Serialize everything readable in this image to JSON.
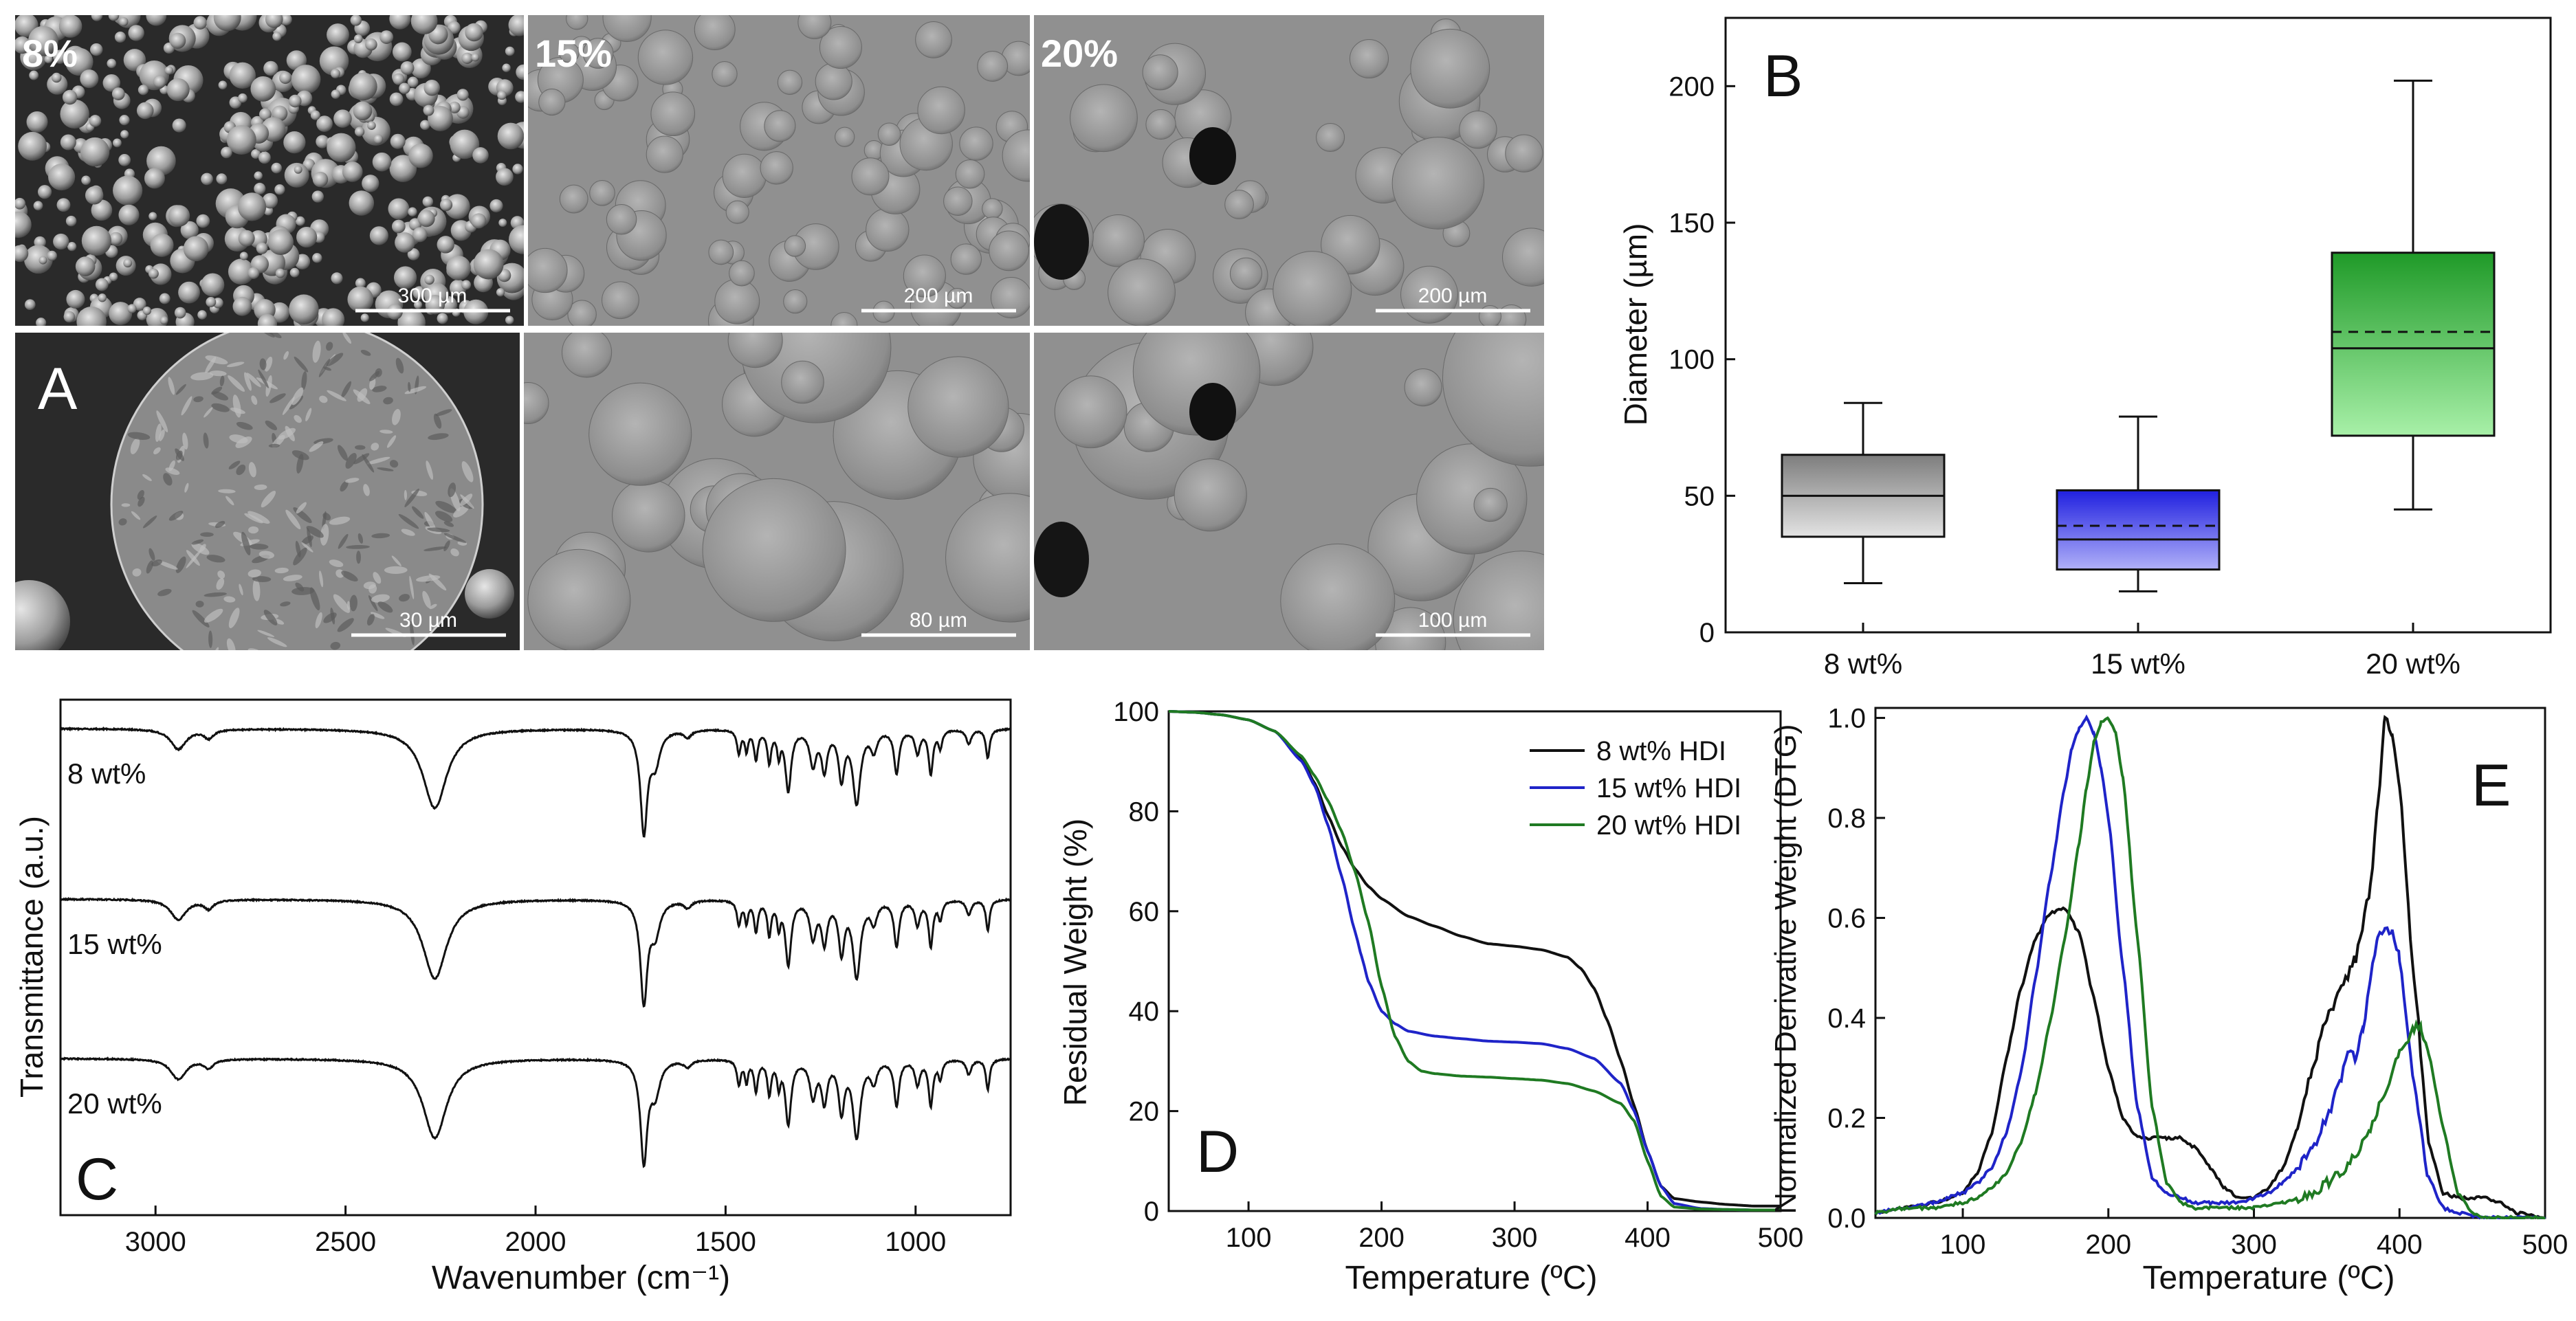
{
  "colors": {
    "black": "#111111",
    "blue": "#1f24c8",
    "green": "#1f7a22",
    "box_gray_top": "#7d7d7d",
    "box_gray_bottom": "#e3e3e3",
    "box_blue_top": "#2020e0",
    "box_blue_bottom": "#b0b0f8",
    "box_green_top": "#1f9a28",
    "box_green_bottom": "#a8f0a8"
  },
  "sem_panel": {
    "panel_letter": "A",
    "images": [
      {
        "row": 0,
        "col": 0,
        "label": "8%",
        "scale_bar": "300 µm",
        "tone": "dark"
      },
      {
        "row": 0,
        "col": 1,
        "label": "15%",
        "scale_bar": "200 µm",
        "tone": "gray"
      },
      {
        "row": 0,
        "col": 2,
        "label": "20%",
        "scale_bar": "200 µm",
        "tone": "gray"
      },
      {
        "row": 1,
        "col": 0,
        "label": "",
        "scale_bar": "30 µm",
        "tone": "dark"
      },
      {
        "row": 1,
        "col": 1,
        "label": "",
        "scale_bar": "80 µm",
        "tone": "gray"
      },
      {
        "row": 1,
        "col": 2,
        "label": "",
        "scale_bar": "100 µm",
        "tone": "gray"
      }
    ]
  },
  "chart_data": [
    {
      "id": "B",
      "type": "box",
      "panel_letter": "B",
      "ylabel": "Diameter (µm)",
      "ylim": [
        0,
        225
      ],
      "yticks": [
        0,
        50,
        100,
        150,
        200
      ],
      "categories": [
        "8 wt%",
        "15 wt%",
        "20 wt%"
      ],
      "boxes": [
        {
          "category": "8 wt%",
          "min": 18,
          "q1": 35,
          "median": 50,
          "mean": 50,
          "q3": 65,
          "max": 84
        },
        {
          "category": "15 wt%",
          "min": 15,
          "q1": 23,
          "median": 34,
          "mean": 39,
          "q3": 52,
          "max": 79
        },
        {
          "category": "20 wt%",
          "min": 45,
          "q1": 72,
          "median": 104,
          "mean": 110,
          "q3": 139,
          "max": 202
        }
      ]
    },
    {
      "id": "C",
      "type": "line",
      "panel_letter": "C",
      "xlabel": "Wavenumber (cm⁻¹)",
      "ylabel": "Transmittance (a.u.)",
      "xlim": [
        3250,
        750
      ],
      "xticks": [
        3000,
        2500,
        2000,
        1500,
        1000
      ],
      "series": [
        {
          "name": "8 wt%",
          "offset": 2.0
        },
        {
          "name": "15 wt%",
          "offset": 1.0
        },
        {
          "name": "20 wt%",
          "offset": 0.0
        }
      ],
      "bands": [
        {
          "center": 2940,
          "depth": 0.14,
          "width": 25
        },
        {
          "center": 2860,
          "depth": 0.06,
          "width": 15
        },
        {
          "center": 2265,
          "depth": 0.55,
          "width": 38
        },
        {
          "center": 1715,
          "depth": 0.7,
          "width": 11
        },
        {
          "center": 1685,
          "depth": 0.22,
          "width": 15
        },
        {
          "center": 1600,
          "depth": 0.05,
          "width": 12
        },
        {
          "center": 1465,
          "depth": 0.16,
          "width": 6
        },
        {
          "center": 1445,
          "depth": 0.14,
          "width": 5
        },
        {
          "center": 1420,
          "depth": 0.2,
          "width": 6
        },
        {
          "center": 1385,
          "depth": 0.22,
          "width": 6
        },
        {
          "center": 1360,
          "depth": 0.16,
          "width": 5
        },
        {
          "center": 1335,
          "depth": 0.42,
          "width": 9
        },
        {
          "center": 1270,
          "depth": 0.24,
          "width": 10
        },
        {
          "center": 1240,
          "depth": 0.27,
          "width": 9
        },
        {
          "center": 1195,
          "depth": 0.33,
          "width": 9
        },
        {
          "center": 1155,
          "depth": 0.5,
          "width": 12
        },
        {
          "center": 1110,
          "depth": 0.14,
          "width": 10
        },
        {
          "center": 1050,
          "depth": 0.3,
          "width": 8
        },
        {
          "center": 995,
          "depth": 0.16,
          "width": 8
        },
        {
          "center": 960,
          "depth": 0.3,
          "width": 7
        },
        {
          "center": 935,
          "depth": 0.12,
          "width": 6
        },
        {
          "center": 860,
          "depth": 0.1,
          "width": 8
        },
        {
          "center": 810,
          "depth": 0.2,
          "width": 6
        }
      ]
    },
    {
      "id": "D",
      "type": "line",
      "panel_letter": "D",
      "xlabel": "Temperature (ºC)",
      "ylabel": "Residual Weight (%)",
      "xlim": [
        40,
        500
      ],
      "ylim": [
        0,
        100
      ],
      "xticks": [
        100,
        200,
        300,
        400,
        500
      ],
      "yticks": [
        0,
        20,
        40,
        60,
        80,
        100
      ],
      "legend_position": "top-right",
      "series": [
        {
          "name": "8 wt% HDI",
          "color_key": "black",
          "x": [
            40,
            60,
            80,
            100,
            120,
            140,
            150,
            160,
            170,
            180,
            190,
            200,
            220,
            240,
            260,
            280,
            300,
            320,
            340,
            350,
            360,
            370,
            380,
            390,
            400,
            410,
            420,
            440,
            460,
            480,
            500
          ],
          "y": [
            100,
            99.8,
            99.3,
            98.3,
            96,
            90.5,
            85.5,
            79,
            73,
            68.5,
            65,
            62.5,
            59,
            57,
            55,
            53.5,
            53,
            52.3,
            50.8,
            48.5,
            44.5,
            38,
            30,
            21,
            12,
            5,
            2.5,
            1.8,
            1.3,
            1,
            1
          ]
        },
        {
          "name": "15 wt% HDI",
          "color_key": "blue",
          "x": [
            40,
            60,
            80,
            100,
            120,
            140,
            150,
            160,
            170,
            180,
            185,
            190,
            200,
            210,
            220,
            240,
            260,
            280,
            300,
            320,
            340,
            360,
            380,
            390,
            400,
            410,
            420,
            440,
            460,
            480,
            500
          ],
          "y": [
            100,
            99.8,
            99.3,
            98.3,
            96,
            90,
            85,
            77,
            67,
            56,
            51,
            46,
            40,
            37.5,
            36,
            35,
            34.5,
            34,
            33.8,
            33.5,
            32.5,
            30.5,
            25.5,
            20,
            12,
            5,
            1.5,
            0.5,
            0.3,
            0.2,
            0.2
          ]
        },
        {
          "name": "20 wt% HDI",
          "color_key": "green",
          "x": [
            40,
            60,
            80,
            100,
            120,
            140,
            150,
            160,
            170,
            180,
            190,
            200,
            210,
            220,
            230,
            240,
            260,
            280,
            300,
            320,
            340,
            360,
            380,
            390,
            400,
            410,
            420,
            440,
            460,
            480,
            500
          ],
          "y": [
            100,
            99.8,
            99.3,
            98.3,
            96,
            91,
            87,
            82,
            76,
            68,
            58,
            45,
            35,
            30,
            28,
            27.5,
            27,
            26.8,
            26.5,
            26.2,
            25.5,
            24,
            21.5,
            18,
            10,
            3,
            0.8,
            0.4,
            0.3,
            0.2,
            0.2
          ]
        }
      ]
    },
    {
      "id": "E",
      "type": "line",
      "panel_letter": "E",
      "xlabel": "Temperature (ºC)",
      "ylabel": "Normalized Derivative Weight (DTG)",
      "xlim": [
        40,
        500
      ],
      "ylim": [
        0,
        1.02
      ],
      "xticks": [
        100,
        200,
        300,
        400,
        500
      ],
      "yticks": [
        0.0,
        0.2,
        0.4,
        0.6,
        0.8,
        1.0
      ],
      "series": [
        {
          "name": "8 wt% HDI",
          "color_key": "black",
          "x": [
            40,
            60,
            80,
            100,
            110,
            120,
            130,
            140,
            150,
            160,
            170,
            180,
            190,
            200,
            210,
            220,
            230,
            240,
            250,
            260,
            270,
            280,
            290,
            300,
            310,
            320,
            330,
            340,
            350,
            360,
            370,
            380,
            385,
            390,
            395,
            400,
            410,
            420,
            430,
            440,
            450,
            460,
            470,
            480,
            500
          ],
          "y": [
            0.01,
            0.02,
            0.03,
            0.05,
            0.09,
            0.17,
            0.32,
            0.46,
            0.56,
            0.61,
            0.62,
            0.57,
            0.44,
            0.3,
            0.2,
            0.16,
            0.16,
            0.16,
            0.16,
            0.14,
            0.1,
            0.06,
            0.04,
            0.04,
            0.06,
            0.1,
            0.18,
            0.3,
            0.4,
            0.46,
            0.52,
            0.66,
            0.82,
            1.0,
            0.97,
            0.86,
            0.48,
            0.15,
            0.05,
            0.04,
            0.04,
            0.04,
            0.03,
            0.01,
            0.0
          ]
        },
        {
          "name": "15 wt% HDI",
          "color_key": "blue",
          "x": [
            40,
            60,
            80,
            100,
            110,
            120,
            130,
            140,
            150,
            160,
            170,
            175,
            180,
            185,
            190,
            195,
            200,
            210,
            220,
            230,
            240,
            250,
            260,
            270,
            280,
            290,
            300,
            310,
            320,
            330,
            340,
            350,
            360,
            365,
            370,
            375,
            380,
            385,
            390,
            395,
            400,
            410,
            420,
            430,
            440,
            460,
            480,
            500
          ],
          "y": [
            0.01,
            0.02,
            0.03,
            0.05,
            0.07,
            0.1,
            0.17,
            0.29,
            0.48,
            0.68,
            0.86,
            0.94,
            0.98,
            1.0,
            0.97,
            0.9,
            0.8,
            0.5,
            0.22,
            0.08,
            0.05,
            0.04,
            0.03,
            0.03,
            0.03,
            0.03,
            0.04,
            0.05,
            0.07,
            0.1,
            0.14,
            0.2,
            0.28,
            0.33,
            0.32,
            0.38,
            0.48,
            0.56,
            0.58,
            0.57,
            0.52,
            0.27,
            0.08,
            0.02,
            0.01,
            0.0,
            0.0,
            0.0
          ]
        },
        {
          "name": "20 wt% HDI",
          "color_key": "green",
          "x": [
            40,
            60,
            80,
            100,
            110,
            120,
            130,
            140,
            150,
            160,
            170,
            180,
            185,
            190,
            195,
            200,
            205,
            210,
            220,
            230,
            240,
            250,
            260,
            270,
            280,
            290,
            300,
            320,
            340,
            350,
            360,
            370,
            380,
            390,
            400,
            410,
            415,
            420,
            430,
            440,
            450,
            460,
            480,
            500
          ],
          "y": [
            0.01,
            0.02,
            0.02,
            0.03,
            0.04,
            0.06,
            0.09,
            0.15,
            0.25,
            0.39,
            0.56,
            0.75,
            0.86,
            0.95,
            0.99,
            1.0,
            0.97,
            0.88,
            0.56,
            0.22,
            0.07,
            0.03,
            0.02,
            0.02,
            0.02,
            0.02,
            0.02,
            0.03,
            0.05,
            0.07,
            0.09,
            0.13,
            0.18,
            0.25,
            0.33,
            0.38,
            0.38,
            0.33,
            0.18,
            0.05,
            0.01,
            0.0,
            0.0,
            0.0
          ]
        }
      ]
    }
  ]
}
